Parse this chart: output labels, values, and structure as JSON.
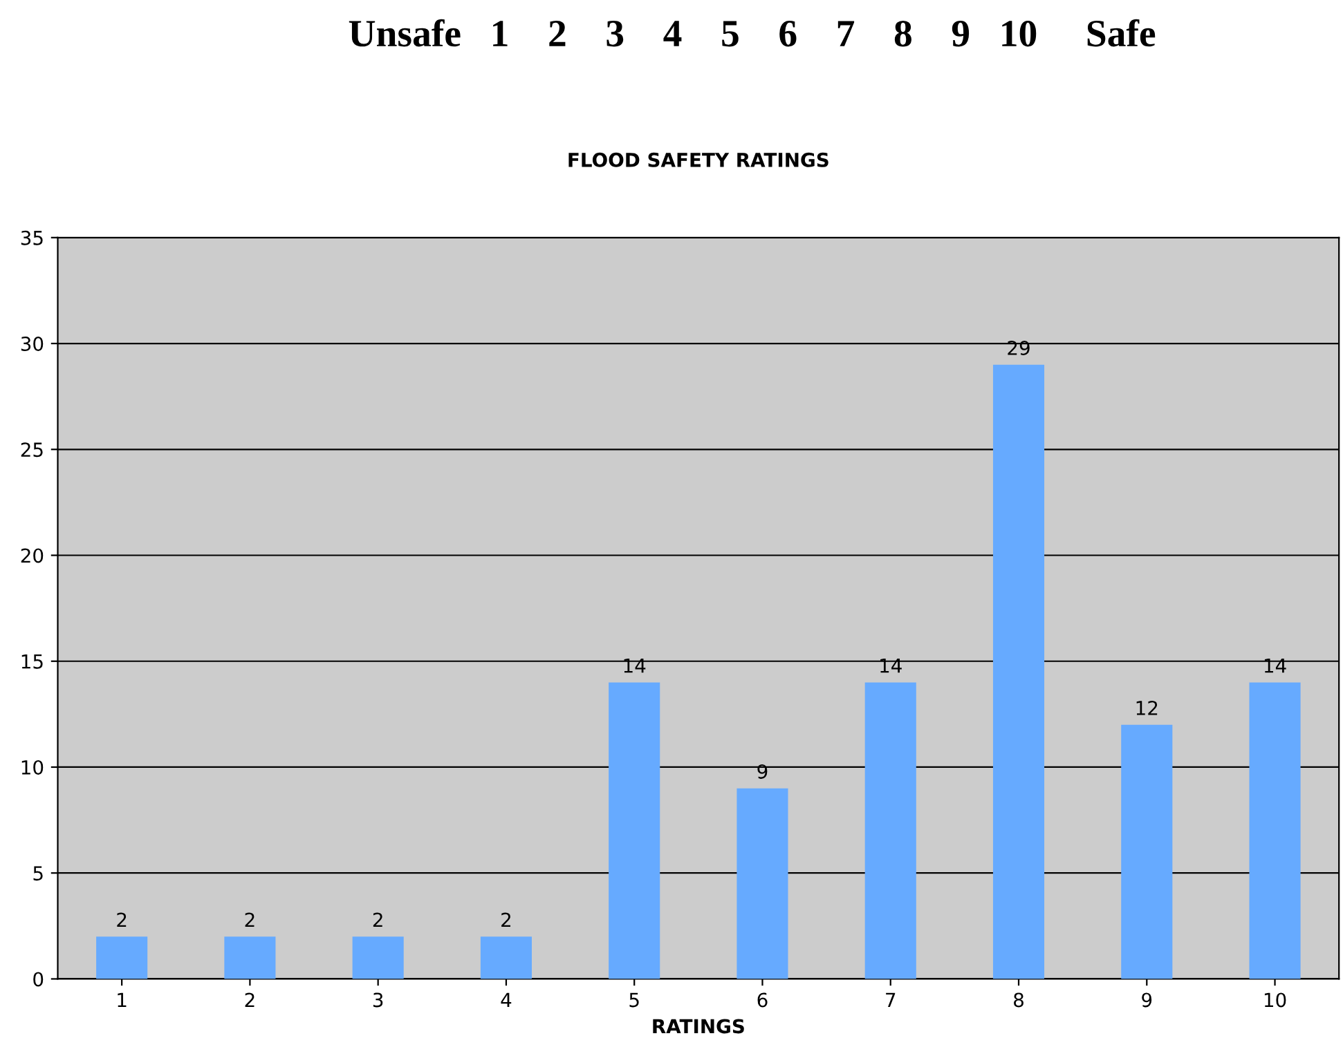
{
  "chart_data": {
    "type": "bar",
    "title": "FLOOD SAFETY RATINGS",
    "xlabel": "RATINGS",
    "annotations": [
      "Unsafe   1    2    3    4    5    6    7    8    9   10     Safe"
    ],
    "categories": [
      "1",
      "2",
      "3",
      "4",
      "5",
      "6",
      "7",
      "8",
      "9",
      "10"
    ],
    "values": [
      2,
      2,
      2,
      2,
      14,
      9,
      14,
      29,
      12,
      14
    ],
    "color": "#66aaff",
    "ylim": [
      0,
      35
    ],
    "yticks": [
      0,
      5,
      10,
      15,
      20,
      25,
      30,
      35
    ],
    "grid": "y",
    "data_labels": true,
    "legend": false
  }
}
